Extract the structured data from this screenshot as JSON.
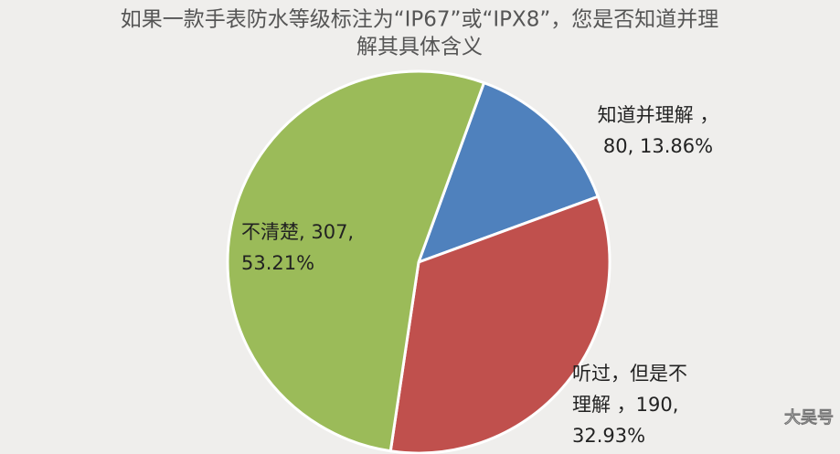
{
  "chart_data": {
    "type": "pie",
    "title": [
      "如果一款手表防水等级标注为“IP67”或“IPX8”，您是否知道并理",
      "解其具体含义"
    ],
    "categories": [
      "知道并理解",
      "听过，但是不理解",
      "不清楚"
    ],
    "values": [
      80,
      190,
      307
    ],
    "colors": [
      "#4f81bd",
      "#c0504d",
      "#9bbb59"
    ],
    "data_labels": [
      [
        "知道并理解 ，",
        "80, 13.86%"
      ],
      [
        "听过，但是不",
        "理解 ，190,",
        "32.93%"
      ],
      [
        "不清楚, 307,",
        "53.21%"
      ]
    ],
    "watermark": "大吴号"
  }
}
